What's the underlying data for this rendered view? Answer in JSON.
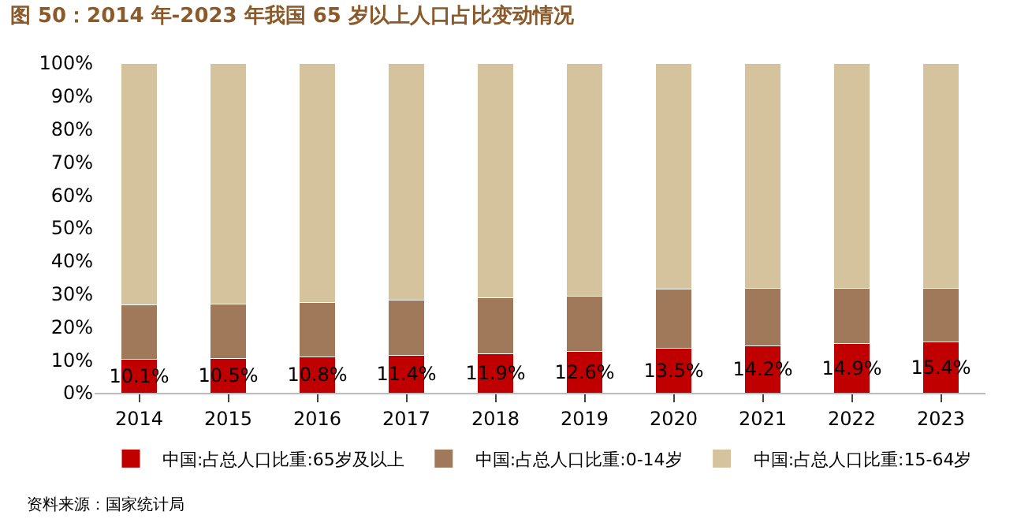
{
  "chart_data": {
    "type": "bar",
    "stacked": true,
    "title": "图 50：2014 年-2023 年我国 65 岁以上人口占比变动情况",
    "categories": [
      "2014",
      "2015",
      "2016",
      "2017",
      "2018",
      "2019",
      "2020",
      "2021",
      "2022",
      "2023"
    ],
    "series": [
      {
        "name": "中国:占总人口比重:65岁及以上",
        "color": "#c00000",
        "values": [
          10.1,
          10.5,
          10.8,
          11.4,
          11.9,
          12.6,
          13.5,
          14.2,
          14.9,
          15.4
        ],
        "value_labels": [
          "10.1%",
          "10.5%",
          "10.8%",
          "11.4%",
          "11.9%",
          "12.6%",
          "13.5%",
          "14.2%",
          "14.9%",
          "15.4%"
        ]
      },
      {
        "name": "中国:占总人口比重:0-14岁",
        "color": "#a0785a",
        "values": [
          16.5,
          16.5,
          16.7,
          16.8,
          16.9,
          16.8,
          17.9,
          17.5,
          16.9,
          16.3
        ]
      },
      {
        "name": "中国:占总人口比重:15-64岁",
        "color": "#d4c39c",
        "values": [
          73.4,
          73.0,
          72.5,
          71.8,
          71.2,
          70.6,
          68.6,
          68.3,
          68.2,
          68.3
        ]
      }
    ],
    "ylim": [
      0,
      100
    ],
    "yticks": [
      {
        "value": 0,
        "label": "0%"
      },
      {
        "value": 10,
        "label": "10%"
      },
      {
        "value": 20,
        "label": "20%"
      },
      {
        "value": 30,
        "label": "30%"
      },
      {
        "value": 40,
        "label": "40%"
      },
      {
        "value": 50,
        "label": "50%"
      },
      {
        "value": 60,
        "label": "60%"
      },
      {
        "value": 70,
        "label": "70%"
      },
      {
        "value": 80,
        "label": "80%"
      },
      {
        "value": 90,
        "label": "90%"
      },
      {
        "value": 100,
        "label": "100%"
      }
    ],
    "legend": "bottom",
    "annotations": [
      "资料来源：国家统计局"
    ]
  }
}
